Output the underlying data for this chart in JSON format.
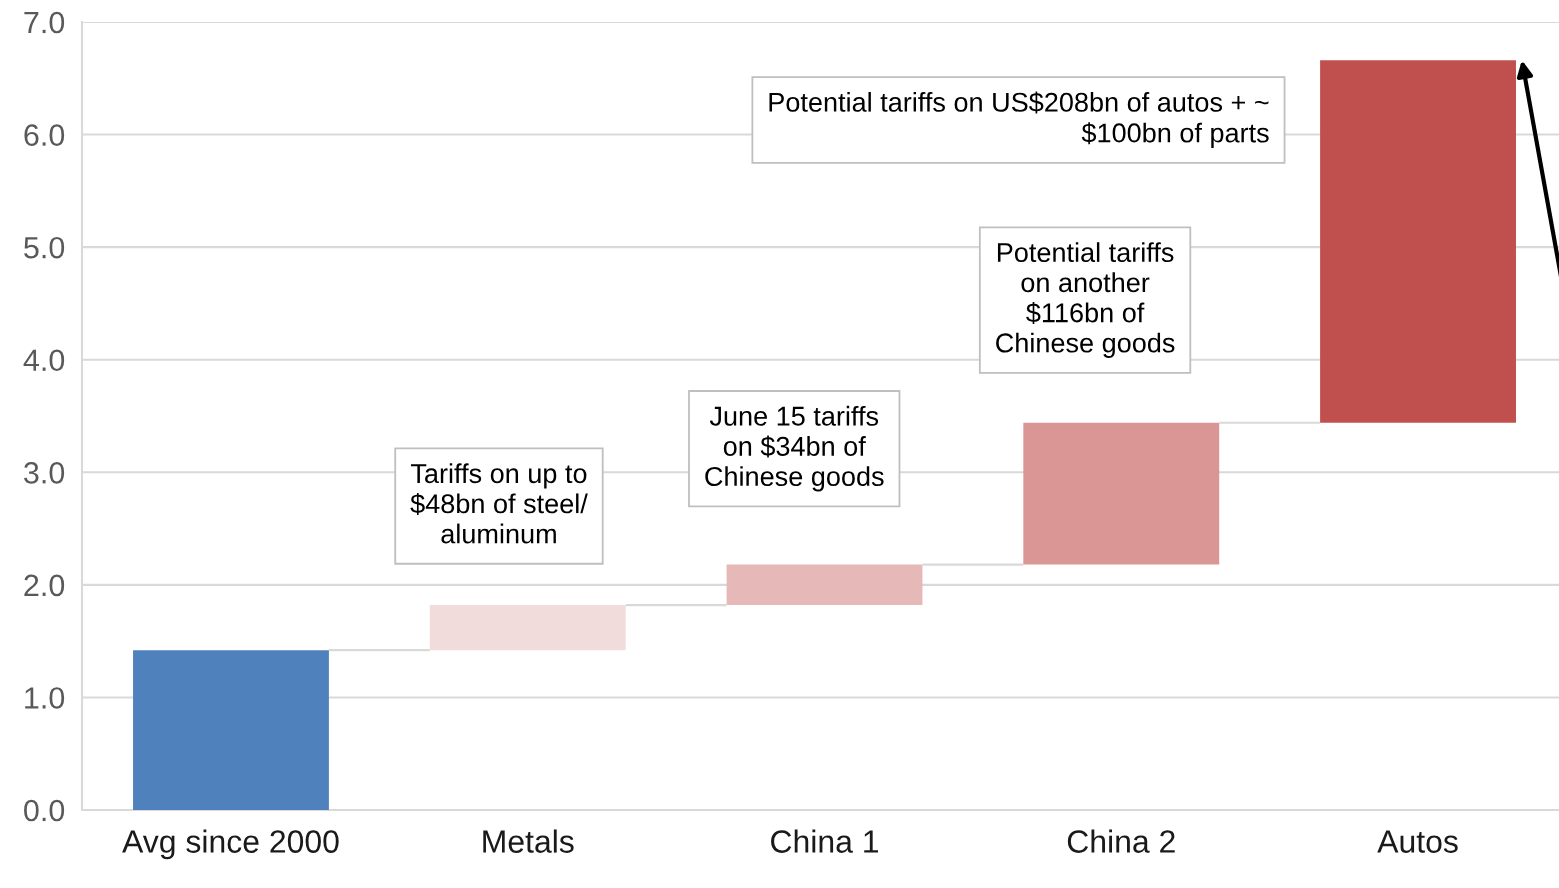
{
  "chart_data": {
    "type": "bar",
    "categories": [
      "Avg since 2000",
      "Metals",
      "China 1",
      "China 2",
      "Autos"
    ],
    "values": [
      1.42,
      0.4,
      0.36,
      1.26,
      3.22
    ],
    "base": [
      0,
      1.42,
      1.82,
      2.18,
      3.44
    ],
    "colors": [
      "#4f81bd",
      "#f2dcdb",
      "#e6b9b8",
      "#d99694",
      "#c0504d"
    ],
    "ylim": [
      0,
      7
    ],
    "yticks": [
      {
        "value": 0,
        "label": "0.0"
      },
      {
        "value": 1,
        "label": "1.0"
      },
      {
        "value": 2,
        "label": "2.0"
      },
      {
        "value": 3,
        "label": "3.0"
      },
      {
        "value": 4,
        "label": "4.0"
      },
      {
        "value": 5,
        "label": "5.0"
      },
      {
        "value": 6,
        "label": "6.0"
      },
      {
        "value": 7,
        "label": "7.0"
      }
    ],
    "grid": "y",
    "annotations": [
      "Tariffs on up to\n$48bn of steel/\naluminum",
      "June 15 tariffs\non $34bn of\nChinese goods",
      "Potential tariffs\non another\n$116bn of\nChinese goods",
      "Potential tariffs on US$208bn of autos + ~\n$100bn of parts"
    ]
  }
}
